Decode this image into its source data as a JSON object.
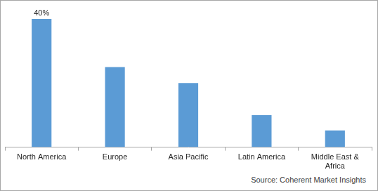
{
  "chart_data": {
    "type": "bar",
    "categories": [
      "North America",
      "Europe",
      "Asia Pacific",
      "Latin America",
      "Middle East & Africa"
    ],
    "values": [
      40,
      25,
      20,
      10,
      5.2
    ],
    "value_labels": [
      "40%",
      null,
      null,
      null,
      null
    ],
    "data_labels": true,
    "color": "#5b9bd5",
    "ylim": [
      0,
      40
    ],
    "grid": false,
    "tick_labels": "x",
    "source": "Source: Coherent Market Insights"
  }
}
